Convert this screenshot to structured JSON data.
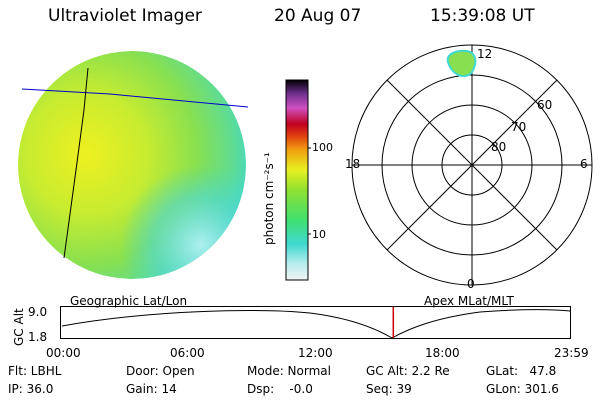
{
  "header": {
    "title": "Ultraviolet Imager",
    "date": "20 Aug 07",
    "time": "15:39:08 UT"
  },
  "colorbar": {
    "unit_label": "photon cm⁻²s⁻¹",
    "ticks": [
      "100",
      "10"
    ]
  },
  "polar": {
    "mlt_labels": [
      "12",
      "18",
      "6",
      "0"
    ],
    "lat_labels": [
      "60",
      "70",
      "80"
    ]
  },
  "strip": {
    "left_title": "Geographic Lat/Lon",
    "right_title": "Apex  MLat/MLT",
    "axis_label": "GC Alt",
    "y_ticks": [
      "9.0",
      "1.8"
    ],
    "x_ticks": [
      "00:00",
      "06:00",
      "12:00",
      "18:00",
      "23:59"
    ],
    "marker_time_hours": 15.65
  },
  "info": {
    "filter": "Flt: LBHL",
    "ip": "IP: 36.0",
    "door": "Door: Open",
    "gain": "Gain: 14",
    "mode": "Mode: Normal",
    "dsp": "Dsp:    -0.0",
    "gc_alt": "GC Alt: 2.2 Re",
    "seq": "Seq: 39",
    "glat": "GLat:   47.8",
    "glon": "GLon: 301.6"
  },
  "colors": {
    "geo_grid": "#0000cc",
    "marker": "#cc0000",
    "disk_bright": "#e8f020",
    "disk_mid": "#90e050",
    "disk_edge": "#40d8d0"
  }
}
